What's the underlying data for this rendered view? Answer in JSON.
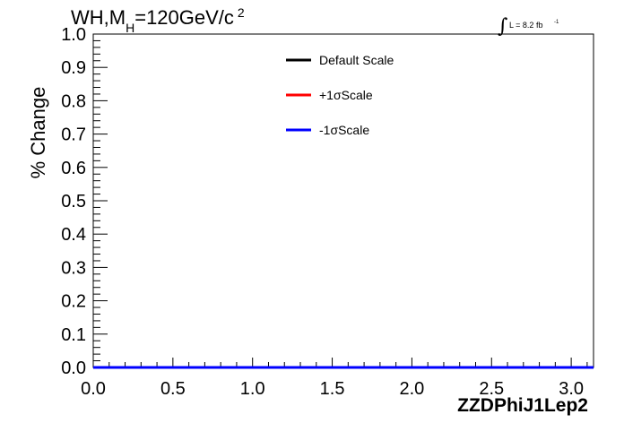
{
  "chart_data": {
    "type": "line",
    "title": "WH,M_H=120GeV/c^2",
    "title_parts": {
      "main": "WH,M",
      "sub": "H",
      "rest": "=120GeV/c",
      "sup": "2"
    },
    "lumi": {
      "integral": "∫",
      "text": "L = 8.2 fb",
      "sup": "-1"
    },
    "xlabel": "ZZDPhiJ1Lep2",
    "ylabel": "% Change",
    "xlim": [
      0,
      3.14
    ],
    "ylim": [
      0,
      1.0
    ],
    "x_ticks": [
      "0.0",
      "0.5",
      "1.0",
      "1.5",
      "2.0",
      "2.5",
      "3.0"
    ],
    "x_tick_values": [
      0,
      0.5,
      1.0,
      1.5,
      2.0,
      2.5,
      3.0
    ],
    "y_ticks": [
      "0.0",
      "0.1",
      "0.2",
      "0.3",
      "0.4",
      "0.5",
      "0.6",
      "0.7",
      "0.8",
      "0.9",
      "1.0"
    ],
    "y_tick_values": [
      0,
      0.1,
      0.2,
      0.3,
      0.4,
      0.5,
      0.6,
      0.7,
      0.8,
      0.9,
      1.0
    ],
    "legend_position": "top-center",
    "series": [
      {
        "name": "Default Scale",
        "color": "#000000",
        "x": [
          0,
          3.14
        ],
        "values": [
          0,
          0
        ]
      },
      {
        "name": "+1σScale",
        "color": "#ff0000",
        "x": [
          0,
          3.14
        ],
        "values": [
          0,
          0
        ]
      },
      {
        "name": "-1σScale",
        "color": "#0000ff",
        "x": [
          0,
          3.14
        ],
        "values": [
          0,
          0
        ]
      }
    ],
    "grid": false
  }
}
